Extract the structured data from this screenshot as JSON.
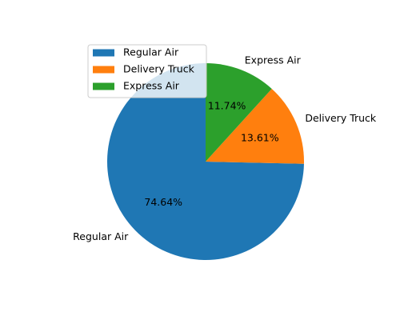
{
  "chart_data": {
    "type": "pie",
    "title": "",
    "labels": [
      "Regular Air",
      "Delivery Truck",
      "Express Air"
    ],
    "values": [
      74.64,
      13.61,
      11.74
    ],
    "percent_labels": [
      "74.64%",
      "13.61%",
      "11.74%"
    ],
    "colors": [
      "#1f77b4",
      "#ff7f0e",
      "#2ca02c"
    ],
    "start_angle_deg": 90,
    "direction": "counterclockwise",
    "legend": {
      "placement": "upper-left",
      "entries": [
        "Regular Air",
        "Delivery Truck",
        "Express Air"
      ]
    }
  }
}
